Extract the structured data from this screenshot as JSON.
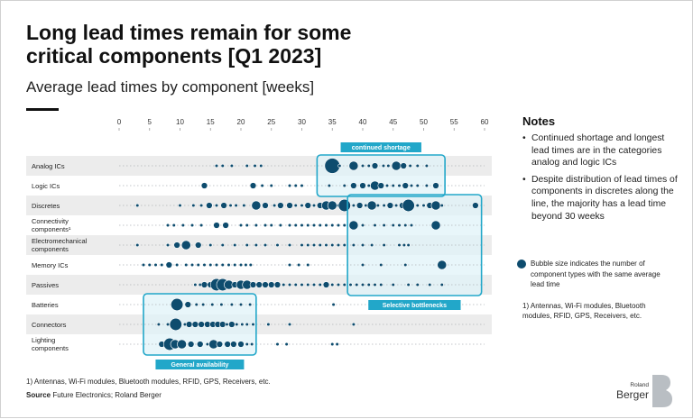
{
  "header": {
    "title": "Long lead times remain for some critical components [Q1 2023]",
    "subtitle": "Average lead times by component [weeks]"
  },
  "notes": {
    "title": "Notes",
    "items": [
      "Continued shortage and longest lead times are in the categories analog and logic ICs",
      "Despite distribution of lead times of components in discretes along the line, the majority has a lead time beyond 30 weeks"
    ],
    "legend": "Bubble size indicates the number of component types with the same average lead time",
    "footnote": "1) Antennas, Wi-Fi modules, Bluetooth modules, RFID, GPS, Receivers, etc."
  },
  "footer": {
    "footnote": "1) Antennas, Wi-Fi modules, Bluetooth modules, RFID, GPS, Receivers, etc.",
    "source_label": "Source",
    "source_text": "Future Electronics; Roland Berger"
  },
  "logo": {
    "line1": "Roland",
    "line2": "Berger"
  },
  "colors": {
    "bubble": "#0e4c6e",
    "highlight": "#22a7c9",
    "highlight_fill": "#e0f3f8",
    "stripe": "#ececec"
  },
  "chart_data": {
    "type": "scatter",
    "xlim": [
      0,
      60
    ],
    "xticks": [
      0,
      5,
      10,
      15,
      20,
      25,
      30,
      35,
      40,
      45,
      50,
      55,
      60
    ],
    "categories": [
      "Analog ICs",
      "Logic ICs",
      "Discretes",
      "Connectivity components¹⁾",
      "Electromechanical components",
      "Memory ICs",
      "Passives",
      "Batteries",
      "Connectors",
      "Lighting components"
    ],
    "series": [
      {
        "category": "Analog ICs",
        "points": [
          [
            16,
            1
          ],
          [
            17,
            1
          ],
          [
            18.5,
            1
          ],
          [
            21,
            1
          ],
          [
            22.3,
            1
          ],
          [
            23.3,
            1
          ],
          [
            34,
            1
          ],
          [
            35,
            5
          ],
          [
            36.2,
            1
          ],
          [
            38.5,
            3
          ],
          [
            40,
            1
          ],
          [
            41,
            1
          ],
          [
            42,
            2
          ],
          [
            43.4,
            1
          ],
          [
            44.2,
            1
          ],
          [
            45.5,
            3
          ],
          [
            46.7,
            2
          ],
          [
            47.8,
            1
          ],
          [
            49,
            1
          ],
          [
            50.5,
            1
          ]
        ]
      },
      {
        "category": "Logic ICs",
        "points": [
          [
            14,
            2
          ],
          [
            22,
            2
          ],
          [
            23.5,
            1
          ],
          [
            25,
            1
          ],
          [
            28,
            1
          ],
          [
            29,
            1
          ],
          [
            30,
            1
          ],
          [
            34.5,
            1
          ],
          [
            37,
            1
          ],
          [
            38.5,
            2
          ],
          [
            40,
            2
          ],
          [
            41,
            1
          ],
          [
            42,
            3
          ],
          [
            43,
            2
          ],
          [
            44,
            1
          ],
          [
            45,
            1
          ],
          [
            46,
            1
          ],
          [
            47,
            2
          ],
          [
            48,
            1
          ],
          [
            49,
            1
          ],
          [
            50.5,
            1
          ],
          [
            52,
            2
          ]
        ]
      },
      {
        "category": "Discretes",
        "points": [
          [
            3,
            1
          ],
          [
            10,
            1
          ],
          [
            12.2,
            1
          ],
          [
            13.5,
            1
          ],
          [
            14.8,
            2
          ],
          [
            16,
            1
          ],
          [
            17.2,
            2
          ],
          [
            18.3,
            1
          ],
          [
            19.2,
            1
          ],
          [
            20.5,
            1
          ],
          [
            22.5,
            3
          ],
          [
            24,
            2
          ],
          [
            25.5,
            1
          ],
          [
            26.5,
            2
          ],
          [
            28,
            2
          ],
          [
            29,
            1
          ],
          [
            30,
            1
          ],
          [
            31,
            2
          ],
          [
            32,
            1
          ],
          [
            33,
            2
          ],
          [
            34,
            3
          ],
          [
            35,
            3
          ],
          [
            36,
            1
          ],
          [
            37,
            4
          ],
          [
            38.5,
            1
          ],
          [
            39.5,
            2
          ],
          [
            40.5,
            1
          ],
          [
            41.5,
            3
          ],
          [
            42.5,
            1
          ],
          [
            43.5,
            1
          ],
          [
            44.5,
            2
          ],
          [
            45.5,
            1
          ],
          [
            46.5,
            2
          ],
          [
            47.5,
            4
          ],
          [
            49,
            1
          ],
          [
            50,
            1
          ],
          [
            51,
            2
          ],
          [
            52,
            3
          ],
          [
            53,
            1
          ],
          [
            58.5,
            2
          ]
        ]
      },
      {
        "category": "Connectivity components",
        "points": [
          [
            8,
            1
          ],
          [
            9,
            1
          ],
          [
            10.5,
            1
          ],
          [
            12,
            1
          ],
          [
            13.5,
            1
          ],
          [
            16,
            2
          ],
          [
            17.5,
            2
          ],
          [
            20,
            1
          ],
          [
            21,
            1
          ],
          [
            22.5,
            1
          ],
          [
            24,
            1
          ],
          [
            25,
            1
          ],
          [
            26.5,
            1
          ],
          [
            28,
            1
          ],
          [
            29,
            1
          ],
          [
            30,
            1
          ],
          [
            31,
            1
          ],
          [
            32,
            1
          ],
          [
            33,
            1
          ],
          [
            34,
            1
          ],
          [
            35,
            1
          ],
          [
            36,
            1
          ],
          [
            37,
            1
          ],
          [
            38.5,
            3
          ],
          [
            40,
            1
          ],
          [
            42,
            1
          ],
          [
            43.5,
            1
          ],
          [
            45,
            1
          ],
          [
            46,
            1
          ],
          [
            47,
            1
          ],
          [
            48,
            1
          ],
          [
            52,
            3
          ]
        ]
      },
      {
        "category": "Electromechanical components",
        "points": [
          [
            3,
            1
          ],
          [
            8,
            1
          ],
          [
            9.5,
            2
          ],
          [
            11,
            3
          ],
          [
            13,
            2
          ],
          [
            15,
            1
          ],
          [
            17,
            1
          ],
          [
            19,
            1
          ],
          [
            21,
            1
          ],
          [
            22.5,
            1
          ],
          [
            24,
            1
          ],
          [
            26,
            1
          ],
          [
            28,
            1
          ],
          [
            30,
            1
          ],
          [
            31,
            1
          ],
          [
            32,
            1
          ],
          [
            33,
            1
          ],
          [
            34,
            1
          ],
          [
            35,
            1
          ],
          [
            36,
            1
          ],
          [
            37,
            1
          ],
          [
            38.5,
            1
          ],
          [
            40,
            1
          ],
          [
            41.5,
            1
          ],
          [
            43.5,
            1
          ],
          [
            46,
            1
          ],
          [
            46.8,
            1
          ],
          [
            47.5,
            1
          ]
        ]
      },
      {
        "category": "Memory ICs",
        "points": [
          [
            4,
            1
          ],
          [
            5,
            1
          ],
          [
            6,
            1
          ],
          [
            7,
            1
          ],
          [
            8.2,
            2
          ],
          [
            9.5,
            1
          ],
          [
            11,
            1
          ],
          [
            12,
            1
          ],
          [
            13,
            1
          ],
          [
            14,
            1
          ],
          [
            15,
            1
          ],
          [
            16,
            1
          ],
          [
            17,
            1
          ],
          [
            18,
            1
          ],
          [
            19,
            1
          ],
          [
            20,
            1
          ],
          [
            20.8,
            1
          ],
          [
            21.6,
            1
          ],
          [
            28,
            1
          ],
          [
            29.5,
            1
          ],
          [
            31,
            1
          ],
          [
            40,
            1
          ],
          [
            43,
            1
          ],
          [
            47,
            1
          ],
          [
            53,
            3
          ]
        ]
      },
      {
        "category": "Passives",
        "points": [
          [
            12.5,
            1
          ],
          [
            13.3,
            1
          ],
          [
            14,
            2
          ],
          [
            15,
            2
          ],
          [
            16,
            4
          ],
          [
            17,
            4
          ],
          [
            18,
            3
          ],
          [
            19,
            2
          ],
          [
            20,
            3
          ],
          [
            21,
            3
          ],
          [
            22,
            2
          ],
          [
            23,
            2
          ],
          [
            24,
            2
          ],
          [
            25,
            2
          ],
          [
            26,
            2
          ],
          [
            27,
            1
          ],
          [
            28,
            1
          ],
          [
            29,
            1
          ],
          [
            30,
            1
          ],
          [
            31,
            1
          ],
          [
            32,
            1
          ],
          [
            33,
            1
          ],
          [
            34,
            2
          ],
          [
            35,
            1
          ],
          [
            36,
            1
          ],
          [
            37,
            1
          ],
          [
            38,
            1
          ],
          [
            39,
            1
          ],
          [
            40,
            1
          ],
          [
            41,
            1
          ],
          [
            42,
            1
          ],
          [
            43,
            1
          ],
          [
            45,
            1
          ],
          [
            47.5,
            1
          ],
          [
            49,
            1
          ],
          [
            51,
            1
          ],
          [
            53,
            1
          ]
        ]
      },
      {
        "category": "Batteries",
        "points": [
          [
            9.5,
            4
          ],
          [
            11.3,
            2
          ],
          [
            12.7,
            1
          ],
          [
            13.8,
            1
          ],
          [
            15.3,
            1
          ],
          [
            16.8,
            1
          ],
          [
            18.5,
            1
          ],
          [
            20,
            1
          ],
          [
            21.5,
            1
          ],
          [
            35.2,
            1
          ]
        ]
      },
      {
        "category": "Connectors",
        "points": [
          [
            6.5,
            1
          ],
          [
            8,
            1
          ],
          [
            9.3,
            4
          ],
          [
            10.8,
            1
          ],
          [
            11.5,
            2
          ],
          [
            12.5,
            2
          ],
          [
            13.5,
            2
          ],
          [
            14.5,
            2
          ],
          [
            15.4,
            2
          ],
          [
            16.2,
            2
          ],
          [
            17,
            2
          ],
          [
            17.7,
            1
          ],
          [
            18.5,
            2
          ],
          [
            19.3,
            1
          ],
          [
            20.2,
            1
          ],
          [
            21,
            1
          ],
          [
            22,
            1
          ],
          [
            24.5,
            1
          ],
          [
            28,
            1
          ],
          [
            38.5,
            1
          ]
        ]
      },
      {
        "category": "Lighting components",
        "points": [
          [
            7,
            2
          ],
          [
            8.3,
            4
          ],
          [
            9.2,
            3
          ],
          [
            10.3,
            3
          ],
          [
            11.8,
            2
          ],
          [
            13.3,
            2
          ],
          [
            14.5,
            1
          ],
          [
            15.5,
            3
          ],
          [
            16.5,
            2
          ],
          [
            17.8,
            2
          ],
          [
            18.8,
            2
          ],
          [
            20,
            2
          ],
          [
            21,
            1
          ],
          [
            21.8,
            1
          ],
          [
            26,
            1
          ],
          [
            27.5,
            1
          ],
          [
            35,
            1
          ],
          [
            35.8,
            1
          ]
        ]
      }
    ],
    "highlights": [
      {
        "label": "continued shortage",
        "xrange": [
          32.5,
          53.5
        ],
        "rows": [
          "Analog ICs",
          "Logic ICs"
        ],
        "label_position": "top"
      },
      {
        "label": "Selective bottlenecks",
        "xrange": [
          37.5,
          59.5
        ],
        "rows": [
          "Discretes",
          "Passives"
        ],
        "label_position": "bottom"
      },
      {
        "label": "General availability",
        "xrange": [
          4,
          22.5
        ],
        "rows": [
          "Batteries",
          "Lighting components"
        ],
        "label_position": "bottom"
      }
    ]
  }
}
